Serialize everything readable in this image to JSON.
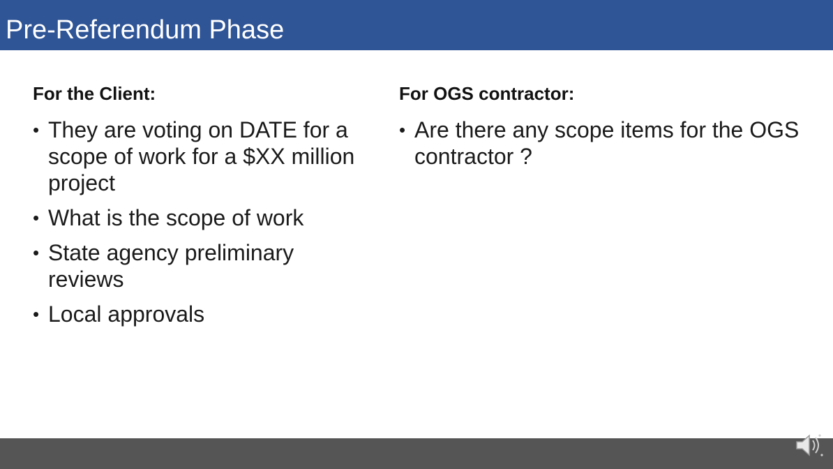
{
  "slide": {
    "title": "Pre-Referendum Phase"
  },
  "left": {
    "heading": "For the Client:",
    "bullets": [
      "They are voting on DATE for a scope of work for a $XX million project",
      "What is the scope of work",
      "State agency preliminary reviews",
      "Local approvals"
    ]
  },
  "right": {
    "heading": "For OGS contractor:",
    "bullets": [
      "Are there any scope items for the OGS contractor ?"
    ]
  },
  "icons": {
    "speaker": "speaker-icon"
  },
  "colors": {
    "title_bar": "#2f5597",
    "title_text": "#ffffff",
    "bottom_bar": "#555555"
  }
}
